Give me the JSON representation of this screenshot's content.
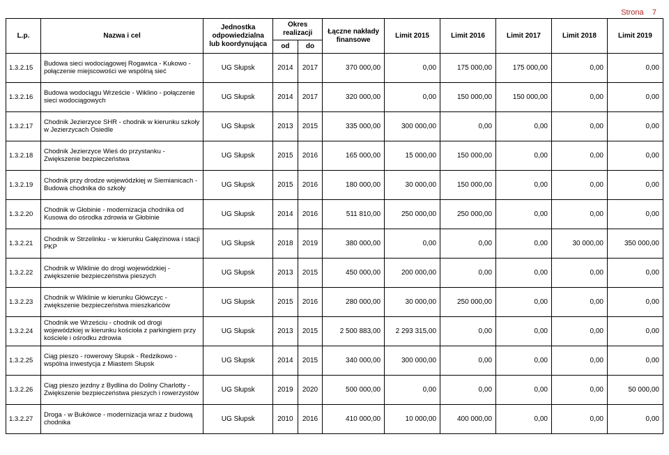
{
  "page_label": "Strona",
  "page_number": "7",
  "headers": {
    "lp": "L.p.",
    "name": "Nazwa i cel",
    "unit": "Jednostka odpowiedzialna lub koordynująca",
    "period": "Okres realizacji",
    "od": "od",
    "do": "do",
    "fin": "Łączne nakłady finansowe",
    "l2015": "Limit 2015",
    "l2016": "Limit 2016",
    "l2017": "Limit 2017",
    "l2018": "Limit 2018",
    "l2019": "Limit 2019"
  },
  "rows": [
    {
      "lp": "1.3.2.15",
      "name": "Budowa sieci wodociągowej Rogawica - Kukowo - połączenie miejscowości we wspólną sieć",
      "unit": "UG Słupsk",
      "od": "2014",
      "do": "2017",
      "fin": "370 000,00",
      "l2015": "0,00",
      "l2016": "175 000,00",
      "l2017": "175 000,00",
      "l2018": "0,00",
      "l2019": "0,00"
    },
    {
      "lp": "1.3.2.16",
      "name": "Budowa wodociągu Wrzeście - Wiklino - połączenie sieci wodociągowych",
      "unit": "UG Słupsk",
      "od": "2014",
      "do": "2017",
      "fin": "320 000,00",
      "l2015": "0,00",
      "l2016": "150 000,00",
      "l2017": "150 000,00",
      "l2018": "0,00",
      "l2019": "0,00"
    },
    {
      "lp": "1.3.2.17",
      "name": "Chodnik Jezierzyce SHR - chodnik w kierunku szkoły w Jezierzycach Osiedle",
      "unit": "UG Słupsk",
      "od": "2013",
      "do": "2015",
      "fin": "335 000,00",
      "l2015": "300 000,00",
      "l2016": "0,00",
      "l2017": "0,00",
      "l2018": "0,00",
      "l2019": "0,00"
    },
    {
      "lp": "1.3.2.18",
      "name": "Chodnik Jezierzyce Wieś do przystanku - Zwiększenie bezpieczeństwa",
      "unit": "UG Słupsk",
      "od": "2015",
      "do": "2016",
      "fin": "165 000,00",
      "l2015": "15 000,00",
      "l2016": "150 000,00",
      "l2017": "0,00",
      "l2018": "0,00",
      "l2019": "0,00"
    },
    {
      "lp": "1.3.2.19",
      "name": "Chodnik przy drodze wojewódzkiej w Siemianicach - Budowa chodnika do szkoły",
      "unit": "UG Słupsk",
      "od": "2015",
      "do": "2016",
      "fin": "180 000,00",
      "l2015": "30 000,00",
      "l2016": "150 000,00",
      "l2017": "0,00",
      "l2018": "0,00",
      "l2019": "0,00"
    },
    {
      "lp": "1.3.2.20",
      "name": "Chodnik w Głobinie - modernizacja chodnika od Kusowa do ośrodka zdrowia w Głobinie",
      "unit": "UG Słupsk",
      "od": "2014",
      "do": "2016",
      "fin": "511 810,00",
      "l2015": "250 000,00",
      "l2016": "250 000,00",
      "l2017": "0,00",
      "l2018": "0,00",
      "l2019": "0,00"
    },
    {
      "lp": "1.3.2.21",
      "name": "Chodnik w Strzelinku - w kierunku Gałęzinowa i stacji PKP",
      "unit": "UG Słupsk",
      "od": "2018",
      "do": "2019",
      "fin": "380 000,00",
      "l2015": "0,00",
      "l2016": "0,00",
      "l2017": "0,00",
      "l2018": "30 000,00",
      "l2019": "350 000,00"
    },
    {
      "lp": "1.3.2.22",
      "name": "Chodnik w Wiklinie do drogi wojewódzkiej - zwiększenie bezpieczeństwa pieszych",
      "unit": "UG Słupsk",
      "od": "2013",
      "do": "2015",
      "fin": "450 000,00",
      "l2015": "200 000,00",
      "l2016": "0,00",
      "l2017": "0,00",
      "l2018": "0,00",
      "l2019": "0,00"
    },
    {
      "lp": "1.3.2.23",
      "name": "Chodnik w Wiklinie w kierunku Główczyc - zwiększenie bezpieczeństwa mieszkańców",
      "unit": "UG Słupsk",
      "od": "2015",
      "do": "2016",
      "fin": "280 000,00",
      "l2015": "30 000,00",
      "l2016": "250 000,00",
      "l2017": "0,00",
      "l2018": "0,00",
      "l2019": "0,00"
    },
    {
      "lp": "1.3.2.24",
      "name": "Chodnik we Wrześciu - chodnik od drogi wojewódzkiej w kierunku kościoła z parkingiem przy kościele i ośrodku zdrowia",
      "unit": "UG Słupsk",
      "od": "2013",
      "do": "2015",
      "fin": "2 500 883,00",
      "l2015": "2 293 315,00",
      "l2016": "0,00",
      "l2017": "0,00",
      "l2018": "0,00",
      "l2019": "0,00"
    },
    {
      "lp": "1.3.2.25",
      "name": "Ciąg pieszo - rowerowy Słupsk - Redzikowo - wspólna inwestycja z Miastem Słupsk",
      "unit": "UG Słupsk",
      "od": "2014",
      "do": "2015",
      "fin": "340 000,00",
      "l2015": "300 000,00",
      "l2016": "0,00",
      "l2017": "0,00",
      "l2018": "0,00",
      "l2019": "0,00"
    },
    {
      "lp": "1.3.2.26",
      "name": "Ciąg pieszo jezdny z Bydlina do Doliny Charlotty - Zwiększenie bezpieczeństwa pieszych i rowerzystów",
      "unit": "UG Słupsk",
      "od": "2019",
      "do": "2020",
      "fin": "500 000,00",
      "l2015": "0,00",
      "l2016": "0,00",
      "l2017": "0,00",
      "l2018": "0,00",
      "l2019": "50 000,00"
    },
    {
      "lp": "1.3.2.27",
      "name": "Droga -  w  Bukówce - modernizacja wraz z budową chodnika",
      "unit": "UG Słupsk",
      "od": "2010",
      "do": "2016",
      "fin": "410 000,00",
      "l2015": "10 000,00",
      "l2016": "400 000,00",
      "l2017": "0,00",
      "l2018": "0,00",
      "l2019": "0,00"
    }
  ]
}
